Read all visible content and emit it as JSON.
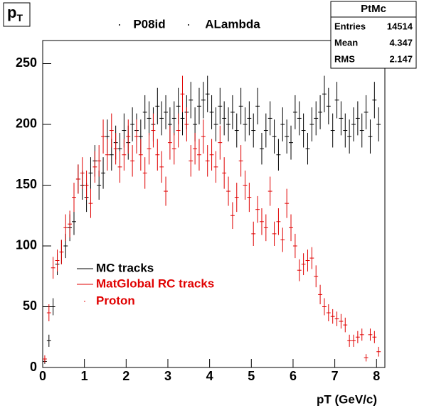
{
  "corner_label": {
    "main": "p",
    "sub": "T"
  },
  "stats": {
    "title": "PtMc",
    "rows": [
      [
        "Entries",
        "14514"
      ],
      [
        "Mean",
        "4.347"
      ],
      [
        "RMS",
        "2.147"
      ]
    ]
  },
  "chart_data": {
    "type": "errorbar",
    "title_parts": [
      "P08id",
      "ALambda"
    ],
    "x_label": "pT (GeV/c)",
    "legend_note": "Proton",
    "legend_note_color": "#e00000",
    "bin_width": 0.1,
    "xlim": [
      0,
      8.2
    ],
    "ylim": [
      0,
      269
    ],
    "xticks": [
      0,
      1,
      2,
      3,
      4,
      5,
      6,
      7,
      8
    ],
    "yticks": [
      0,
      50,
      100,
      150,
      200,
      250
    ],
    "x": [
      0.05,
      0.15,
      0.25,
      0.35,
      0.45,
      0.55,
      0.65,
      0.75,
      0.85,
      0.95,
      1.05,
      1.15,
      1.25,
      1.35,
      1.45,
      1.55,
      1.65,
      1.75,
      1.85,
      1.95,
      2.05,
      2.15,
      2.25,
      2.35,
      2.45,
      2.55,
      2.65,
      2.75,
      2.85,
      2.95,
      3.05,
      3.15,
      3.25,
      3.35,
      3.45,
      3.55,
      3.65,
      3.75,
      3.85,
      3.95,
      4.05,
      4.15,
      4.25,
      4.35,
      4.45,
      4.55,
      4.65,
      4.75,
      4.85,
      4.95,
      5.05,
      5.15,
      5.25,
      5.35,
      5.45,
      5.55,
      5.65,
      5.75,
      5.85,
      5.95,
      6.05,
      6.15,
      6.25,
      6.35,
      6.45,
      6.55,
      6.65,
      6.75,
      6.85,
      6.95,
      7.05,
      7.15,
      7.25,
      7.35,
      7.45,
      7.55,
      7.65,
      7.75,
      7.85,
      7.95,
      8.05
    ],
    "series": [
      {
        "name": "MC tracks",
        "color": "#000000",
        "values": [
          5,
          22,
          50,
          85,
          95,
          100,
          115,
          120,
          155,
          150,
          140,
          160,
          170,
          150,
          160,
          190,
          175,
          185,
          180,
          195,
          185,
          200,
          195,
          190,
          210,
          205,
          200,
          215,
          205,
          210,
          200,
          205,
          215,
          205,
          210,
          220,
          200,
          215,
          220,
          225,
          210,
          200,
          215,
          205,
          200,
          210,
          195,
          215,
          200,
          205,
          195,
          215,
          180,
          195,
          205,
          190,
          175,
          200,
          190,
          185,
          210,
          205,
          195,
          180,
          200,
          205,
          210,
          225,
          215,
          195,
          220,
          205,
          195,
          190,
          200,
          205,
          195,
          210,
          190,
          220,
          200
        ],
        "errors": [
          2,
          5,
          7,
          9,
          10,
          10,
          11,
          11,
          12,
          12,
          12,
          13,
          13,
          12,
          13,
          14,
          13,
          14,
          13,
          14,
          14,
          14,
          14,
          14,
          14,
          14,
          14,
          15,
          14,
          14,
          14,
          14,
          15,
          14,
          14,
          15,
          14,
          15,
          15,
          15,
          14,
          14,
          15,
          14,
          14,
          14,
          14,
          15,
          14,
          14,
          14,
          15,
          13,
          14,
          14,
          14,
          13,
          14,
          14,
          14,
          14,
          14,
          14,
          13,
          14,
          14,
          14,
          15,
          15,
          14,
          15,
          14,
          14,
          14,
          14,
          14,
          14,
          14,
          14,
          15,
          14
        ]
      },
      {
        "name": "MatGlobal RC tracks",
        "color": "#e00000",
        "values": [
          7,
          45,
          82,
          88,
          95,
          115,
          118,
          140,
          155,
          160,
          150,
          135,
          165,
          170,
          190,
          175,
          195,
          180,
          165,
          175,
          190,
          170,
          190,
          175,
          160,
          180,
          195,
          175,
          165,
          145,
          185,
          180,
          195,
          225,
          200,
          170,
          180,
          175,
          190,
          170,
          175,
          165,
          185,
          160,
          145,
          125,
          140,
          170,
          150,
          140,
          110,
          130,
          120,
          115,
          145,
          110,
          120,
          105,
          135,
          115,
          100,
          80,
          85,
          88,
          90,
          75,
          60,
          50,
          45,
          42,
          40,
          38,
          35,
          22,
          22,
          25,
          27,
          8,
          27,
          25,
          13
        ],
        "errors": [
          3,
          7,
          9,
          9,
          10,
          11,
          11,
          12,
          12,
          13,
          12,
          12,
          13,
          13,
          14,
          13,
          14,
          13,
          13,
          13,
          14,
          13,
          14,
          13,
          13,
          13,
          14,
          13,
          13,
          12,
          14,
          13,
          14,
          15,
          14,
          13,
          13,
          13,
          14,
          13,
          13,
          13,
          14,
          13,
          12,
          11,
          12,
          13,
          12,
          12,
          10,
          11,
          11,
          11,
          12,
          10,
          11,
          10,
          12,
          11,
          10,
          9,
          9,
          9,
          9,
          9,
          8,
          7,
          7,
          6,
          6,
          6,
          6,
          5,
          5,
          5,
          5,
          3,
          5,
          5,
          4
        ]
      }
    ]
  }
}
